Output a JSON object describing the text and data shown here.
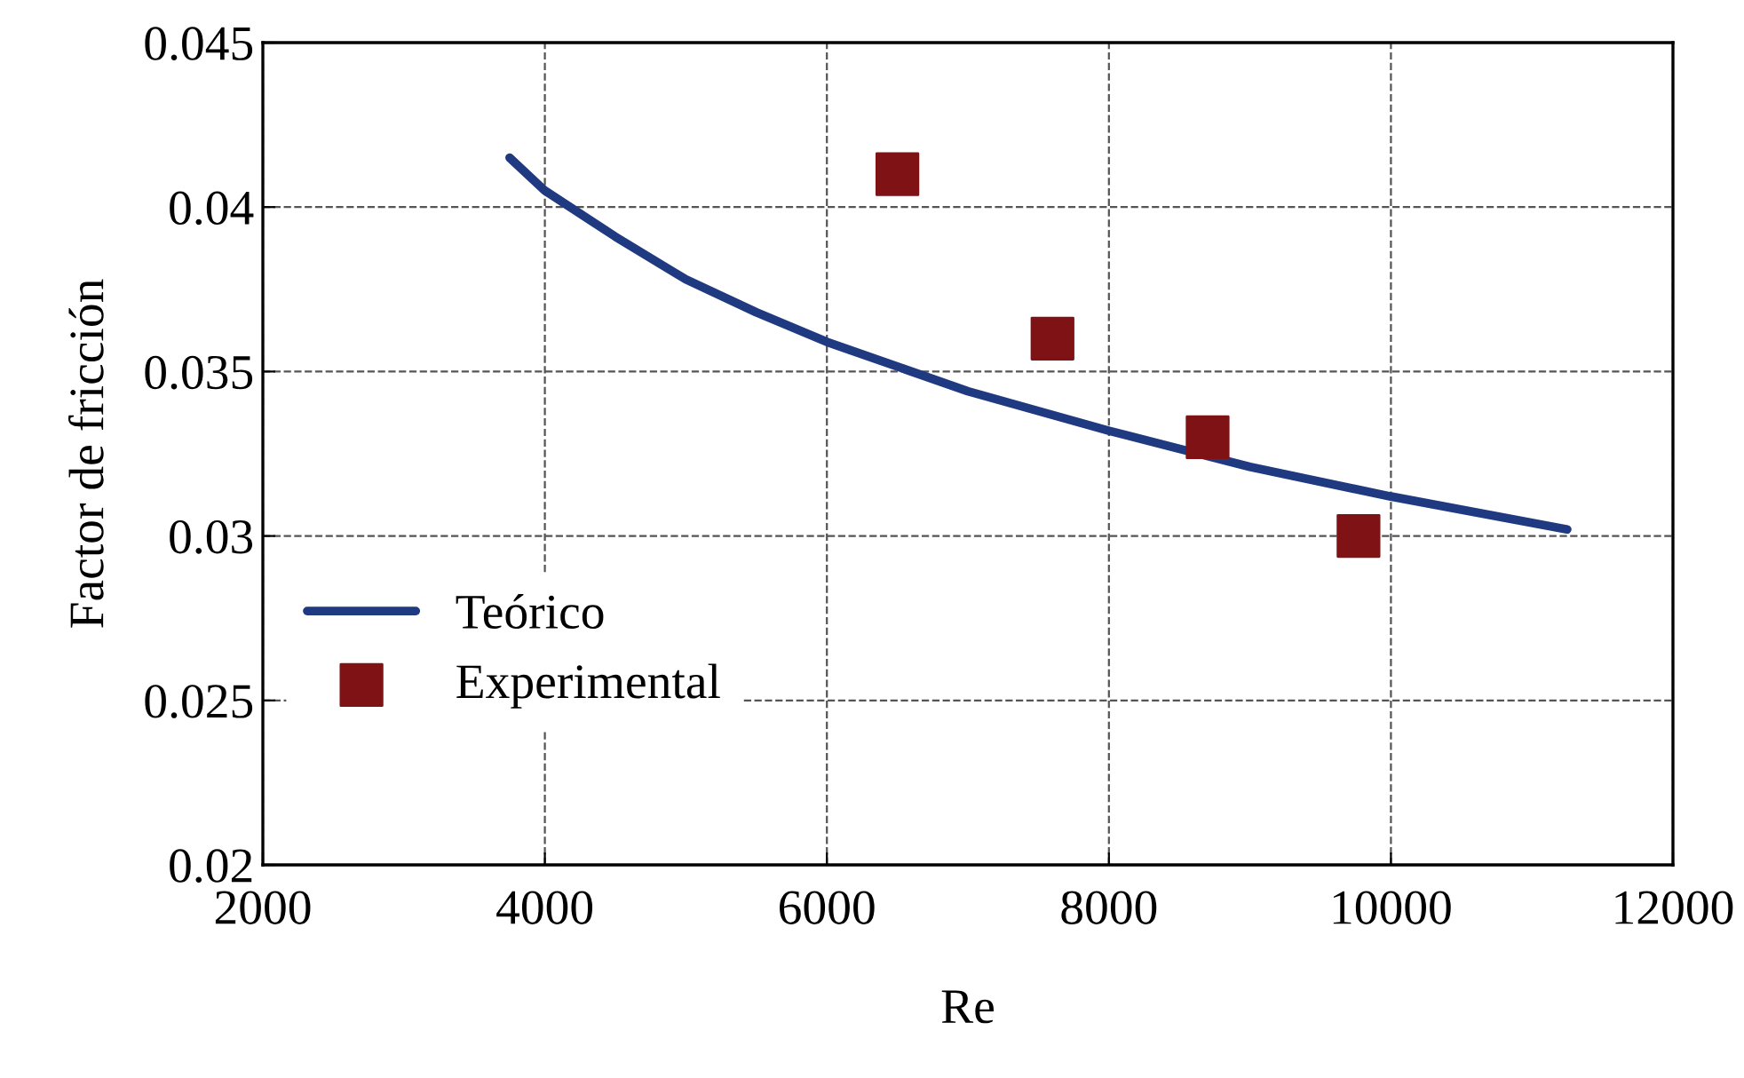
{
  "chart_data": {
    "type": "line",
    "xlabel": "Re",
    "ylabel": "Factor de fricción",
    "xlim": [
      2000,
      12000
    ],
    "xticks": [
      2000,
      4000,
      6000,
      8000,
      10000,
      12000
    ],
    "ylim": [
      0.02,
      0.045
    ],
    "yticks": [
      {
        "value": 0.02,
        "label": "0.02"
      },
      {
        "value": 0.025,
        "label": "0.025"
      },
      {
        "value": 0.03,
        "label": "0.03"
      },
      {
        "value": 0.035,
        "label": "0.035"
      },
      {
        "value": 0.04,
        "label": "0.04"
      },
      {
        "value": 0.045,
        "label": "0.045"
      }
    ],
    "grid": true,
    "legend": "left",
    "series": [
      {
        "name": "Teórico",
        "color": "#1f3a80",
        "marker": "none",
        "line_style": "solid",
        "x": [
          3750,
          4000,
          4500,
          5000,
          5500,
          6000,
          7000,
          8000,
          9000,
          10000,
          11250
        ],
        "values": [
          0.0415,
          0.0405,
          0.0391,
          0.0378,
          0.0368,
          0.0359,
          0.0344,
          0.0332,
          0.0321,
          0.0312,
          0.0302
        ]
      },
      {
        "name": "Experimental",
        "type": "scatter",
        "color": "#7f1214",
        "marker": "square",
        "x": [
          6500,
          7600,
          8700,
          9770
        ],
        "values": [
          0.041,
          0.036,
          0.033,
          0.03
        ]
      }
    ]
  }
}
